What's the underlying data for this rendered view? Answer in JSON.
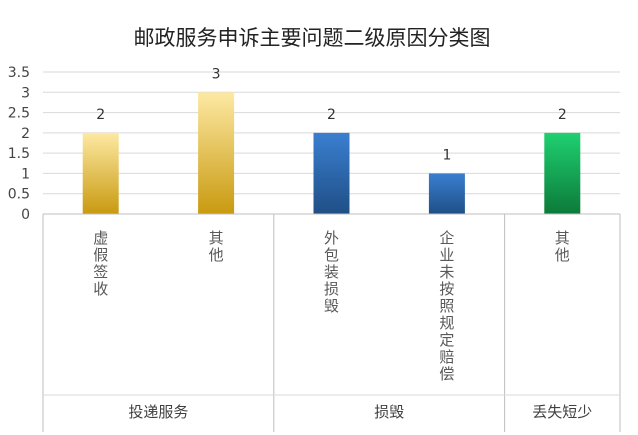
{
  "chart_data": {
    "type": "bar",
    "title": "邮政服务申诉主要问题二级原因分类图",
    "ylim": [
      0,
      3.5
    ],
    "yticks": [
      "0",
      "0.5",
      "1",
      "1.5",
      "2",
      "2.5",
      "3",
      "3.5"
    ],
    "grid": true,
    "categories": [
      "虚假签收",
      "其他",
      "外包装损毁",
      "企业未按照规定赔偿",
      "其他"
    ],
    "groups": [
      {
        "name": "投递服务",
        "categories": [
          "虚假签收",
          "其他"
        ]
      },
      {
        "name": "损毁",
        "categories": [
          "外包装损毁",
          "企业未按照规定赔偿"
        ]
      },
      {
        "name": "丢失短少",
        "categories": [
          "其他"
        ]
      }
    ],
    "values": [
      2,
      3,
      2,
      1,
      2
    ],
    "data_labels": [
      "2",
      "3",
      "2",
      "1",
      "2"
    ],
    "bar_colors": [
      [
        "#fde9a3",
        "#c99a10"
      ],
      [
        "#fde9a3",
        "#c99a10"
      ],
      [
        "#3a7fd0",
        "#1f4f86"
      ],
      [
        "#3a7fd0",
        "#1f4f86"
      ],
      [
        "#1fd070",
        "#0c7a3a"
      ]
    ]
  }
}
